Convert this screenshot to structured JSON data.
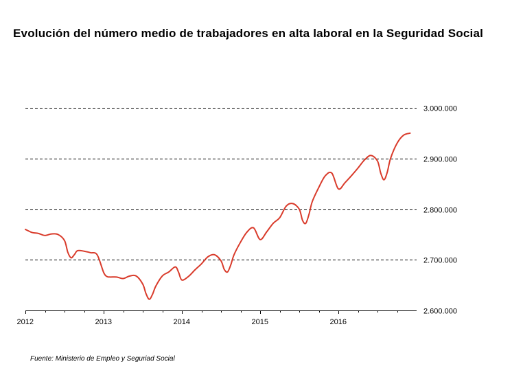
{
  "title": "Evolución del número medio de trabajadores en alta laboral en la Seguridad Social",
  "source": "Fuente: Ministerio de Empleo y Seguriad Social",
  "colors": {
    "line": "#d93b2b",
    "grid": "#000000",
    "axis": "#000000",
    "background": "#ffffff"
  },
  "chart_data": {
    "type": "line",
    "title": "Evolución del número medio de trabajadores en alta laboral en la Seguridad Social",
    "xlabel": "",
    "ylabel": "",
    "xlim": [
      2012.0,
      2017.0
    ],
    "ylim": [
      2600000,
      3000000
    ],
    "y_ticks": [
      2600000,
      2700000,
      2800000,
      2900000,
      3000000
    ],
    "y_tick_labels": [
      "2.600.000",
      "2.700.000",
      "2.800.000",
      "2.900.000",
      "3.000.000"
    ],
    "x_ticks": [
      2012,
      2013,
      2014,
      2015,
      2016
    ],
    "x_tick_labels": [
      "2012",
      "2013",
      "2014",
      "2015",
      "2016"
    ],
    "grid": "horizontal dashed",
    "series": [
      {
        "values_x": [
          2012.0,
          2012.0833,
          2012.1667,
          2012.25,
          2012.3333,
          2012.4167,
          2012.5,
          2012.5417,
          2012.5833,
          2012.625,
          2012.6667,
          2012.75,
          2012.8333,
          2012.9167,
          2013.0,
          2013.0417,
          2013.0833,
          2013.1667,
          2013.25,
          2013.3333,
          2013.4167,
          2013.5,
          2013.5417,
          2013.5833,
          2013.625,
          2013.6667,
          2013.75,
          2013.8333,
          2013.9167,
          2013.9583,
          2014.0,
          2014.0833,
          2014.1667,
          2014.25,
          2014.3333,
          2014.4167,
          2014.5,
          2014.5417,
          2014.5833,
          2014.625,
          2014.6667,
          2014.75,
          2014.8333,
          2014.9167,
          2015.0,
          2015.0833,
          2015.1667,
          2015.25,
          2015.3333,
          2015.4167,
          2015.5,
          2015.5417,
          2015.5833,
          2015.625,
          2015.6667,
          2015.75,
          2015.8333,
          2015.9167,
          2016.0,
          2016.0833,
          2016.1667,
          2016.25,
          2016.3333,
          2016.4167,
          2016.5,
          2016.5417,
          2016.5833,
          2016.625,
          2016.6667,
          2016.75,
          2016.8333,
          2016.9167
        ],
        "values": [
          2760000,
          2754000,
          2752000,
          2748000,
          2751000,
          2750000,
          2738000,
          2715000,
          2704000,
          2710000,
          2718000,
          2717000,
          2714000,
          2710000,
          2675000,
          2667000,
          2666000,
          2666000,
          2663000,
          2668000,
          2668000,
          2652000,
          2633000,
          2622000,
          2632000,
          2648000,
          2668000,
          2676000,
          2686000,
          2675000,
          2660000,
          2667000,
          2680000,
          2692000,
          2706000,
          2710000,
          2698000,
          2681000,
          2676000,
          2690000,
          2710000,
          2735000,
          2755000,
          2763000,
          2740000,
          2755000,
          2772000,
          2783000,
          2806000,
          2811000,
          2800000,
          2778000,
          2772000,
          2790000,
          2815000,
          2843000,
          2866000,
          2871000,
          2840000,
          2852000,
          2866000,
          2881000,
          2897000,
          2906000,
          2895000,
          2871000,
          2858000,
          2873000,
          2900000,
          2930000,
          2946000,
          2950000
        ]
      }
    ]
  }
}
